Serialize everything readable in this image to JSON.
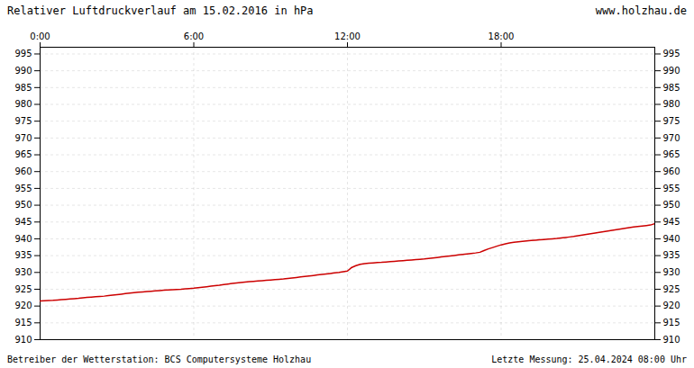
{
  "chart_data": {
    "type": "line",
    "title": "Relativer Luftdruckverlauf am 15.02.2016 in hPa",
    "annotations": [
      "www.holzhau.de",
      "Betreiber der Wetterstation: BCS Computersysteme Holzhau",
      "Letzte Messung: 25.04.2024 08:00 Uhr"
    ],
    "color": "#cc0000",
    "grid": true,
    "xlim": [
      0,
      24
    ],
    "xticks": [
      {
        "value": 0,
        "label": "0:00"
      },
      {
        "value": 6,
        "label": "6:00"
      },
      {
        "value": 12,
        "label": "12:00"
      },
      {
        "value": 18,
        "label": "18:00"
      }
    ],
    "ylim": [
      910,
      997
    ],
    "yticks": [
      910,
      915,
      920,
      925,
      930,
      935,
      940,
      945,
      950,
      955,
      960,
      965,
      970,
      975,
      980,
      985,
      990,
      995
    ],
    "x": [
      0.0,
      0.17,
      0.33,
      0.5,
      0.67,
      0.83,
      1.0,
      1.17,
      1.33,
      1.5,
      1.67,
      1.83,
      2.0,
      2.17,
      2.33,
      2.5,
      2.67,
      2.83,
      3.0,
      3.17,
      3.33,
      3.5,
      3.67,
      3.83,
      4.0,
      4.17,
      4.33,
      4.5,
      4.67,
      4.83,
      5.0,
      5.17,
      5.33,
      5.5,
      5.67,
      5.83,
      6.0,
      6.17,
      6.33,
      6.5,
      6.67,
      6.83,
      7.0,
      7.17,
      7.33,
      7.5,
      7.67,
      7.83,
      8.0,
      8.17,
      8.33,
      8.5,
      8.67,
      8.83,
      9.0,
      9.17,
      9.33,
      9.5,
      9.67,
      9.83,
      10.0,
      10.17,
      10.33,
      10.5,
      10.67,
      10.83,
      11.0,
      11.17,
      11.33,
      11.5,
      11.67,
      11.83,
      12.0,
      12.17,
      12.33,
      12.5,
      12.67,
      12.83,
      13.0,
      13.17,
      13.33,
      13.5,
      13.67,
      13.83,
      14.0,
      14.17,
      14.33,
      14.5,
      14.67,
      14.83,
      15.0,
      15.17,
      15.33,
      15.5,
      15.67,
      15.83,
      16.0,
      16.17,
      16.33,
      16.5,
      16.67,
      16.83,
      17.0,
      17.17,
      17.33,
      17.5,
      17.67,
      17.83,
      18.0,
      18.17,
      18.33,
      18.5,
      18.67,
      18.83,
      19.0,
      19.17,
      19.33,
      19.5,
      19.67,
      19.83,
      20.0,
      20.17,
      20.33,
      20.5,
      20.67,
      20.83,
      21.0,
      21.17,
      21.33,
      21.5,
      21.67,
      21.83,
      22.0,
      22.17,
      22.33,
      22.5,
      22.67,
      22.83,
      23.0,
      23.17,
      23.33,
      23.5,
      23.67,
      23.83,
      24.0
    ],
    "values": [
      921.5,
      921.6,
      921.65,
      921.7,
      921.8,
      921.9,
      922.0,
      922.1,
      922.2,
      922.3,
      922.45,
      922.55,
      922.65,
      922.75,
      922.85,
      922.95,
      923.1,
      923.25,
      923.4,
      923.55,
      923.7,
      923.85,
      924.0,
      924.1,
      924.2,
      924.3,
      924.4,
      924.5,
      924.6,
      924.7,
      924.8,
      924.88,
      924.95,
      925.0,
      925.1,
      925.2,
      925.3,
      925.45,
      925.6,
      925.75,
      925.9,
      926.05,
      926.2,
      926.4,
      926.55,
      926.7,
      926.85,
      927.0,
      927.15,
      927.25,
      927.35,
      927.45,
      927.55,
      927.65,
      927.75,
      927.85,
      927.95,
      928.05,
      928.2,
      928.35,
      928.5,
      928.65,
      928.8,
      928.95,
      929.1,
      929.25,
      929.4,
      929.55,
      929.7,
      929.85,
      930.0,
      930.2,
      930.4,
      931.5,
      932.0,
      932.4,
      932.6,
      932.75,
      932.85,
      932.95,
      933.0,
      933.1,
      933.2,
      933.3,
      933.4,
      933.5,
      933.6,
      933.7,
      933.8,
      933.9,
      934.0,
      934.15,
      934.3,
      934.45,
      934.6,
      934.75,
      934.9,
      935.05,
      935.2,
      935.35,
      935.5,
      935.65,
      935.8,
      936.0,
      936.5,
      937.0,
      937.4,
      937.8,
      938.2,
      938.5,
      938.75,
      938.95,
      939.1,
      939.25,
      939.4,
      939.5,
      939.6,
      939.7,
      939.8,
      939.9,
      940.0,
      940.1,
      940.25,
      940.4,
      940.55,
      940.7,
      940.9,
      941.1,
      941.3,
      941.5,
      941.7,
      941.9,
      942.1,
      942.3,
      942.5,
      942.7,
      942.9,
      943.1,
      943.3,
      943.5,
      943.65,
      943.8,
      943.95,
      944.1,
      944.5
    ]
  }
}
